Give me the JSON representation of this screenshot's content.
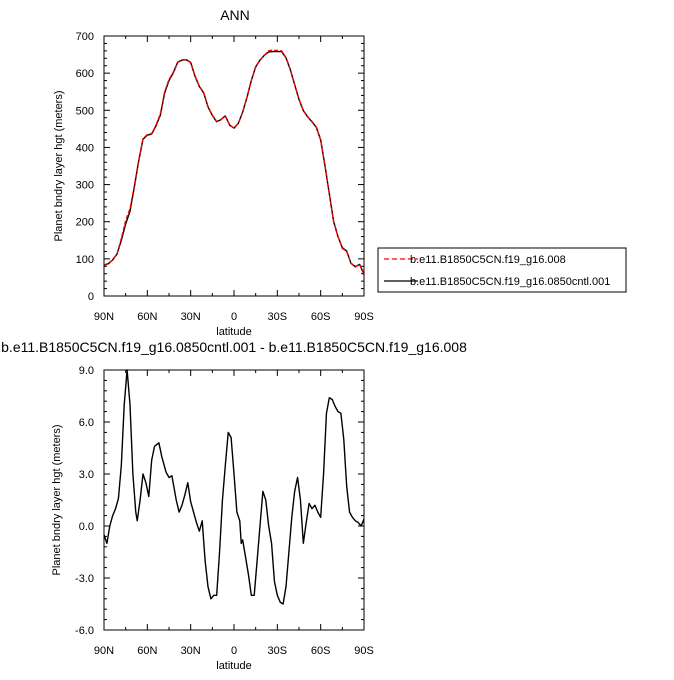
{
  "chart_data": [
    {
      "type": "line",
      "title": "ANN",
      "xlabel": "latitude",
      "ylabel": "Planet bndry layer hgt (meters)",
      "xlim": [
        90,
        -90
      ],
      "ylim": [
        0,
        700
      ],
      "x_ticks": [
        90,
        60,
        30,
        0,
        -30,
        -60,
        -90
      ],
      "x_tick_labels": [
        "90N",
        "60N",
        "30N",
        "0",
        "30S",
        "60S",
        "90S"
      ],
      "y_ticks": [
        0,
        100,
        200,
        300,
        400,
        500,
        600,
        700
      ],
      "y_tick_labels": [
        "0",
        "100",
        "200",
        "300",
        "400",
        "500",
        "600",
        "700"
      ],
      "legend": "right",
      "series": [
        {
          "name": "b.e11.B1850C5CN.f19_g16.008",
          "color": "#ff0000",
          "dash": "dashed",
          "points": [
            [
              90,
              83
            ],
            [
              87,
              88
            ],
            [
              84,
              97
            ],
            [
              81,
              113
            ],
            [
              78,
              155
            ],
            [
              75,
              203
            ],
            [
              72,
              235
            ],
            [
              69,
              297
            ],
            [
              66,
              365
            ],
            [
              63,
              423
            ],
            [
              60,
              435
            ],
            [
              57,
              437
            ],
            [
              54,
              460
            ],
            [
              51,
              490
            ],
            [
              48,
              550
            ],
            [
              45,
              583
            ],
            [
              42,
              603
            ],
            [
              39,
              630
            ],
            [
              36,
              636
            ],
            [
              33,
              636
            ],
            [
              30,
              628
            ],
            [
              27,
              593
            ],
            [
              24,
              565
            ],
            [
              21,
              548
            ],
            [
              18,
              510
            ],
            [
              15,
              487
            ],
            [
              12,
              470
            ],
            [
              9,
              475
            ],
            [
              6,
              485
            ],
            [
              3,
              460
            ],
            [
              0,
              452
            ],
            [
              -3,
              465
            ],
            [
              -6,
              495
            ],
            [
              -9,
              535
            ],
            [
              -12,
              580
            ],
            [
              -15,
              617
            ],
            [
              -18,
              635
            ],
            [
              -21,
              648
            ],
            [
              -24,
              660
            ],
            [
              -27,
              662
            ],
            [
              -30,
              661
            ],
            [
              -33,
              660
            ],
            [
              -36,
              642
            ],
            [
              -39,
              610
            ],
            [
              -42,
              570
            ],
            [
              -45,
              530
            ],
            [
              -48,
              500
            ],
            [
              -51,
              483
            ],
            [
              -54,
              470
            ],
            [
              -57,
              455
            ],
            [
              -60,
              420
            ],
            [
              -63,
              350
            ],
            [
              -66,
              275
            ],
            [
              -69,
              200
            ],
            [
              -72,
              160
            ],
            [
              -75,
              128
            ],
            [
              -78,
              120
            ],
            [
              -81,
              88
            ],
            [
              -84,
              78
            ],
            [
              -87,
              85
            ],
            [
              -90,
              58
            ]
          ]
        },
        {
          "name": "b.e11.B1850C5CN.f19_g16.0850cntl.001",
          "color": "#000000",
          "dash": "solid",
          "points": [
            [
              90,
              82
            ],
            [
              87,
              87
            ],
            [
              84,
              97
            ],
            [
              81,
              113
            ],
            [
              78,
              150
            ],
            [
              75,
              194
            ],
            [
              72,
              228
            ],
            [
              69,
              293
            ],
            [
              66,
              363
            ],
            [
              63,
              422
            ],
            [
              60,
              433
            ],
            [
              57,
              436
            ],
            [
              54,
              458
            ],
            [
              51,
              487
            ],
            [
              48,
              547
            ],
            [
              45,
              580
            ],
            [
              42,
              601
            ],
            [
              39,
              629
            ],
            [
              36,
              635
            ],
            [
              33,
              636
            ],
            [
              30,
              629
            ],
            [
              27,
              592
            ],
            [
              24,
              564
            ],
            [
              21,
              547
            ],
            [
              18,
              509
            ],
            [
              15,
              486
            ],
            [
              12,
              469
            ],
            [
              9,
              475
            ],
            [
              6,
              485
            ],
            [
              3,
              460
            ],
            [
              0,
              452
            ],
            [
              -3,
              465
            ],
            [
              -6,
              495
            ],
            [
              -9,
              535
            ],
            [
              -12,
              580
            ],
            [
              -15,
              617
            ],
            [
              -18,
              635
            ],
            [
              -21,
              648
            ],
            [
              -24,
              657
            ],
            [
              -27,
              658
            ],
            [
              -30,
              658
            ],
            [
              -33,
              658
            ],
            [
              -36,
              641
            ],
            [
              -39,
              609
            ],
            [
              -42,
              569
            ],
            [
              -45,
              529
            ],
            [
              -48,
              499
            ],
            [
              -51,
              482
            ],
            [
              -54,
              469
            ],
            [
              -57,
              454
            ],
            [
              -60,
              420
            ],
            [
              -63,
              350
            ],
            [
              -66,
              275
            ],
            [
              -69,
              200
            ],
            [
              -72,
              160
            ],
            [
              -75,
              130
            ],
            [
              -78,
              121
            ],
            [
              -81,
              88
            ],
            [
              -84,
              79
            ],
            [
              -87,
              85
            ],
            [
              -90,
              58
            ]
          ]
        }
      ]
    },
    {
      "type": "line",
      "title": "b.e11.B1850C5CN.f19_g16.0850cntl.001 - b.e11.B1850C5CN.f19_g16.008",
      "xlabel": "latitude",
      "ylabel": "Planet bndry layer hgt (meters)",
      "xlim": [
        90,
        -90
      ],
      "ylim": [
        -6,
        9
      ],
      "x_ticks": [
        90,
        60,
        30,
        0,
        -30,
        -60,
        -90
      ],
      "x_tick_labels": [
        "90N",
        "60N",
        "30N",
        "0",
        "30S",
        "60S",
        "90S"
      ],
      "y_ticks": [
        -6,
        -3,
        0,
        3,
        6,
        9
      ],
      "y_tick_labels": [
        "-6.0",
        "-3.0",
        "0.0",
        "3.0",
        "6.0",
        "9.0"
      ],
      "series": [
        {
          "color": "#000000",
          "dash": "solid",
          "points": [
            [
              90,
              -0.5
            ],
            [
              88,
              -1.0
            ],
            [
              86,
              0.0
            ],
            [
              84,
              0.6
            ],
            [
              82,
              1.0
            ],
            [
              80,
              1.6
            ],
            [
              78,
              3.5
            ],
            [
              76,
              7.0
            ],
            [
              74,
              9.0
            ],
            [
              72,
              7.0
            ],
            [
              70,
              3.0
            ],
            [
              68,
              0.8
            ],
            [
              67,
              0.3
            ],
            [
              65,
              1.5
            ],
            [
              63,
              3.0
            ],
            [
              61,
              2.5
            ],
            [
              59,
              1.7
            ],
            [
              57,
              3.8
            ],
            [
              55,
              4.6
            ],
            [
              52,
              4.8
            ],
            [
              50,
              4.0
            ],
            [
              47,
              3.1
            ],
            [
              45,
              2.8
            ],
            [
              43,
              2.9
            ],
            [
              40,
              1.5
            ],
            [
              38,
              0.8
            ],
            [
              36,
              1.2
            ],
            [
              34,
              1.8
            ],
            [
              32,
              2.5
            ],
            [
              30,
              1.4
            ],
            [
              28,
              0.8
            ],
            [
              26,
              0.2
            ],
            [
              24,
              -0.3
            ],
            [
              22,
              0.3
            ],
            [
              20,
              -2.0
            ],
            [
              18,
              -3.5
            ],
            [
              16,
              -4.2
            ],
            [
              14,
              -4.0
            ],
            [
              12,
              -4.0
            ],
            [
              10,
              -1.5
            ],
            [
              8,
              1.5
            ],
            [
              6,
              3.5
            ],
            [
              4,
              5.4
            ],
            [
              2,
              5.1
            ],
            [
              0,
              3.0
            ],
            [
              -2,
              0.8
            ],
            [
              -4,
              0.3
            ],
            [
              -5,
              -1.0
            ],
            [
              -6,
              -0.8
            ],
            [
              -8,
              -1.8
            ],
            [
              -10,
              -2.8
            ],
            [
              -12,
              -4.0
            ],
            [
              -14,
              -4.0
            ],
            [
              -16,
              -2.0
            ],
            [
              -18,
              0.0
            ],
            [
              -20,
              2.0
            ],
            [
              -22,
              1.5
            ],
            [
              -24,
              0.0
            ],
            [
              -26,
              -1.0
            ],
            [
              -28,
              -3.2
            ],
            [
              -30,
              -4.0
            ],
            [
              -32,
              -4.4
            ],
            [
              -34,
              -4.5
            ],
            [
              -36,
              -3.5
            ],
            [
              -38,
              -1.5
            ],
            [
              -40,
              0.5
            ],
            [
              -42,
              2.0
            ],
            [
              -44,
              2.8
            ],
            [
              -46,
              1.5
            ],
            [
              -48,
              -1.0
            ],
            [
              -50,
              0.2
            ],
            [
              -52,
              1.3
            ],
            [
              -54,
              1.0
            ],
            [
              -56,
              1.2
            ],
            [
              -58,
              0.8
            ],
            [
              -60,
              0.5
            ],
            [
              -62,
              3.0
            ],
            [
              -64,
              6.5
            ],
            [
              -66,
              7.4
            ],
            [
              -68,
              7.3
            ],
            [
              -70,
              6.9
            ],
            [
              -72,
              6.6
            ],
            [
              -74,
              6.5
            ],
            [
              -76,
              5.0
            ],
            [
              -78,
              2.3
            ],
            [
              -80,
              0.8
            ],
            [
              -82,
              0.5
            ],
            [
              -84,
              0.3
            ],
            [
              -86,
              0.2
            ],
            [
              -88,
              0.0
            ],
            [
              -90,
              0.4
            ],
            [
              -92,
              0.6
            ],
            [
              -94,
              0.0
            ],
            [
              -96,
              -0.2
            ],
            [
              -98,
              -0.2
            ],
            [
              -100,
              0.0
            ]
          ]
        }
      ]
    }
  ]
}
